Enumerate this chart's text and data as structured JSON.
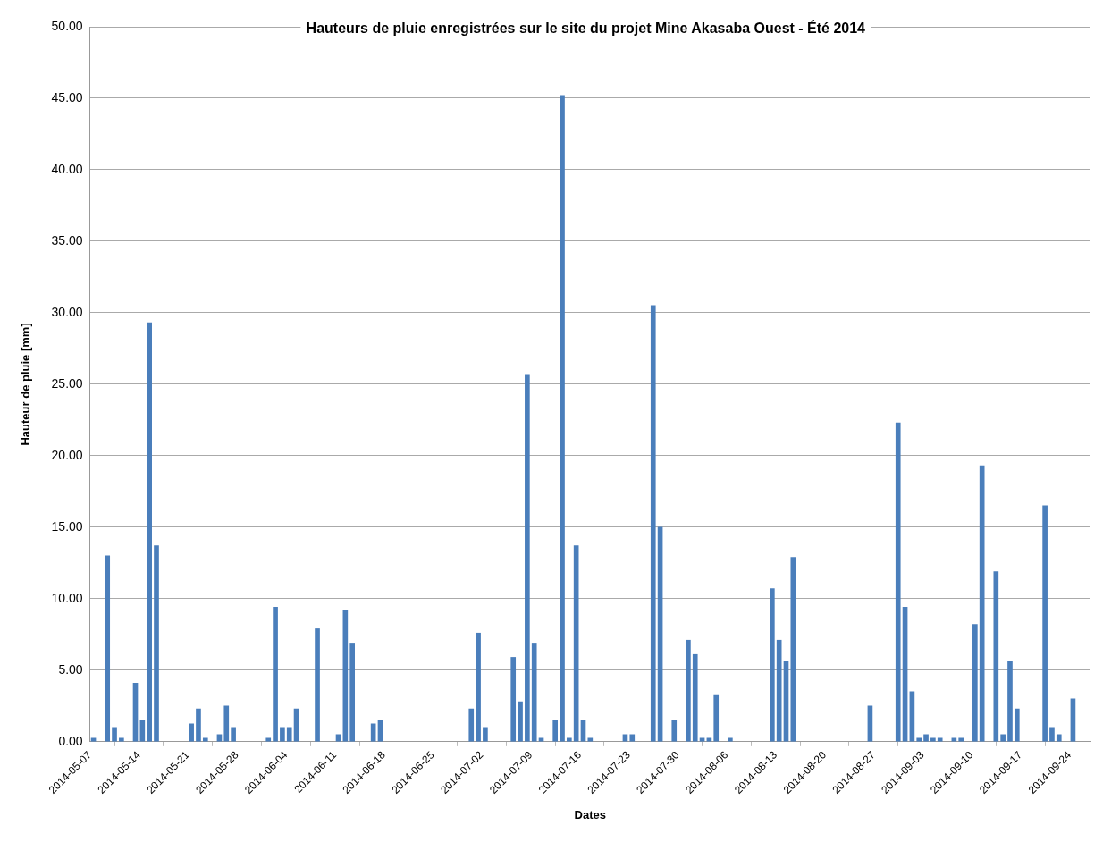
{
  "chart_data": {
    "type": "bar",
    "title": "Hauteurs de pluie enregistrées sur le site du projet Mine Akasaba Ouest - Été 2014",
    "xlabel": "Dates",
    "ylabel": "Hauteur de pluie [mm]",
    "x": [
      "2014-05-07",
      "2014-05-09",
      "2014-05-10",
      "2014-05-11",
      "2014-05-13",
      "2014-05-14",
      "2014-05-15",
      "2014-05-16",
      "2014-05-21",
      "2014-05-22",
      "2014-05-23",
      "2014-05-25",
      "2014-05-26",
      "2014-05-27",
      "2014-06-01",
      "2014-06-02",
      "2014-06-03",
      "2014-06-04",
      "2014-06-05",
      "2014-06-08",
      "2014-06-11",
      "2014-06-12",
      "2014-06-13",
      "2014-06-16",
      "2014-06-17",
      "2014-06-30",
      "2014-07-01",
      "2014-07-02",
      "2014-07-06",
      "2014-07-07",
      "2014-07-08",
      "2014-07-09",
      "2014-07-10",
      "2014-07-12",
      "2014-07-13",
      "2014-07-14",
      "2014-07-15",
      "2014-07-16",
      "2014-07-17",
      "2014-07-22",
      "2014-07-23",
      "2014-07-26",
      "2014-07-27",
      "2014-07-29",
      "2014-07-31",
      "2014-08-01",
      "2014-08-02",
      "2014-08-03",
      "2014-08-04",
      "2014-08-06",
      "2014-08-12",
      "2014-08-13",
      "2014-08-14",
      "2014-08-15",
      "2014-08-26",
      "2014-08-30",
      "2014-08-31",
      "2014-09-01",
      "2014-09-02",
      "2014-09-03",
      "2014-09-04",
      "2014-09-05",
      "2014-09-07",
      "2014-09-08",
      "2014-09-10",
      "2014-09-11",
      "2014-09-13",
      "2014-09-14",
      "2014-09-15",
      "2014-09-16",
      "2014-09-20",
      "2014-09-21",
      "2014-09-22",
      "2014-09-24"
    ],
    "values": [
      0.25,
      13.0,
      1.0,
      0.25,
      4.1,
      1.5,
      29.3,
      13.7,
      1.25,
      2.3,
      0.25,
      0.5,
      2.5,
      1.0,
      0.25,
      9.4,
      1.0,
      1.0,
      2.3,
      7.9,
      0.5,
      9.2,
      6.9,
      1.25,
      1.5,
      2.3,
      7.6,
      1.0,
      5.9,
      2.8,
      25.7,
      6.9,
      0.25,
      1.5,
      45.2,
      0.25,
      13.7,
      1.5,
      0.25,
      0.5,
      0.5,
      30.5,
      15.0,
      1.5,
      7.1,
      6.1,
      0.25,
      0.25,
      3.3,
      0.25,
      10.7,
      7.1,
      5.6,
      12.9,
      2.5,
      22.3,
      9.4,
      3.5,
      0.25,
      0.5,
      0.25,
      0.25,
      0.25,
      0.25,
      8.2,
      19.3,
      11.9,
      0.5,
      5.6,
      2.3,
      16.5,
      1.0,
      0.5,
      3.0
    ],
    "color": "#4a7ebb",
    "xlim": [
      "2014-05-07",
      "2014-09-27"
    ],
    "xticks": [
      "2014-05-07",
      "2014-05-14",
      "2014-05-21",
      "2014-05-28",
      "2014-06-04",
      "2014-06-11",
      "2014-06-18",
      "2014-06-25",
      "2014-07-02",
      "2014-07-09",
      "2014-07-16",
      "2014-07-23",
      "2014-07-30",
      "2014-08-06",
      "2014-08-13",
      "2014-08-20",
      "2014-08-27",
      "2014-09-03",
      "2014-09-10",
      "2014-09-17",
      "2014-09-24"
    ],
    "ylim": [
      0,
      50
    ],
    "yticks": [
      {
        "value": 0,
        "label": "0.00"
      },
      {
        "value": 5,
        "label": "5.00"
      },
      {
        "value": 10,
        "label": "10.00"
      },
      {
        "value": 15,
        "label": "15.00"
      },
      {
        "value": 20,
        "label": "20.00"
      },
      {
        "value": 25,
        "label": "25.00"
      },
      {
        "value": 30,
        "label": "30.00"
      },
      {
        "value": 35,
        "label": "35.00"
      },
      {
        "value": 40,
        "label": "40.00"
      },
      {
        "value": 45,
        "label": "45.00"
      },
      {
        "value": 50,
        "label": "50.00"
      }
    ],
    "grid": "y"
  }
}
